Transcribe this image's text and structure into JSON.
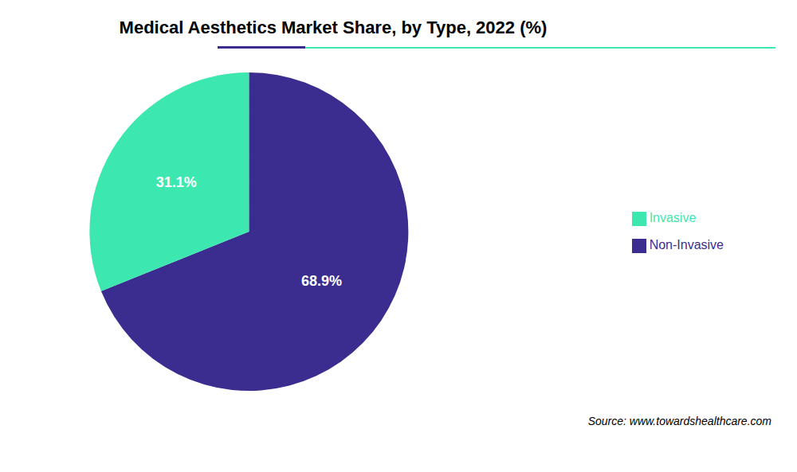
{
  "chart_data": {
    "type": "pie",
    "title": "Medical Aesthetics Market Share, by Type, 2022 (%)",
    "categories": [
      "Non-Invasive",
      "Invasive"
    ],
    "values": [
      68.9,
      31.1
    ],
    "value_labels": [
      "68.9%",
      "31.1%"
    ],
    "data_labels": true,
    "colors": [
      "#3a2d8f",
      "#3de8b0"
    ],
    "legend": "right",
    "annotations": [
      "Source: www.towardshealthcare.com"
    ]
  }
}
